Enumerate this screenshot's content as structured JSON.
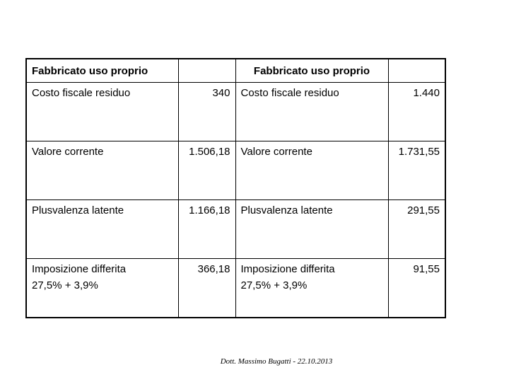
{
  "table": {
    "header": [
      "Fabbricato uso proprio",
      "Fabbricato uso proprio"
    ],
    "rows": [
      [
        [
          "Costo fiscale residuo"
        ],
        "340",
        [
          "Costo fiscale residuo"
        ],
        "1.440"
      ],
      [
        [
          "Valore corrente"
        ],
        "1.506,18",
        [
          "Valore corrente"
        ],
        "1.731,55"
      ],
      [
        [
          "Plusvalenza latente"
        ],
        "1.166,18",
        [
          "Plusvalenza latente"
        ],
        "291,55"
      ],
      [
        [
          "Imposizione differita",
          "27,5% + 3,9%"
        ],
        "366,18",
        [
          "Imposizione differita",
          "27,5% + 3,9%"
        ],
        "91,55"
      ]
    ]
  },
  "footer": "Dott. Massimo Bugatti - 22.10.2013"
}
